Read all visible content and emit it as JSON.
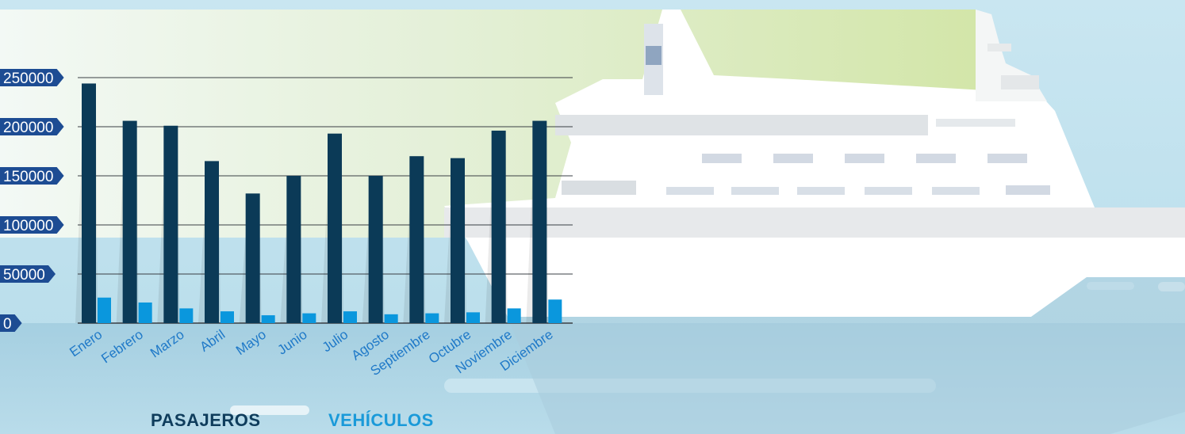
{
  "chart_data": {
    "type": "bar",
    "categories": [
      "Enero",
      "Febrero",
      "Marzo",
      "Abril",
      "Mayo",
      "Junio",
      "Julio",
      "Agosto",
      "Septiembre",
      "Octubre",
      "Noviembre",
      "Diciembre"
    ],
    "series": [
      {
        "name": "PASAJEROS",
        "values": [
          244000,
          206000,
          201000,
          165000,
          132000,
          150000,
          193000,
          150000,
          170000,
          168000,
          196000,
          206000
        ]
      },
      {
        "name": "VEHÍCULOS",
        "values": [
          26000,
          21000,
          15000,
          12000,
          8000,
          10000,
          12000,
          9000,
          10000,
          11000,
          15000,
          24000
        ]
      }
    ],
    "yticks": [
      "250000",
      "200000",
      "150000",
      "100000",
      "50000",
      "0"
    ],
    "ylim": [
      0,
      250000
    ],
    "grid": true,
    "legend_position": "bottom",
    "colors": {
      "pasajeros": "#0b3a57",
      "vehiculos": "#0a97dd",
      "axis_tag": "#1d4c93",
      "xlabel": "#1f79c8"
    }
  },
  "legend": {
    "pasajeros_label": "PASAJEROS",
    "vehiculos_label": "VEHÍCULOS"
  }
}
